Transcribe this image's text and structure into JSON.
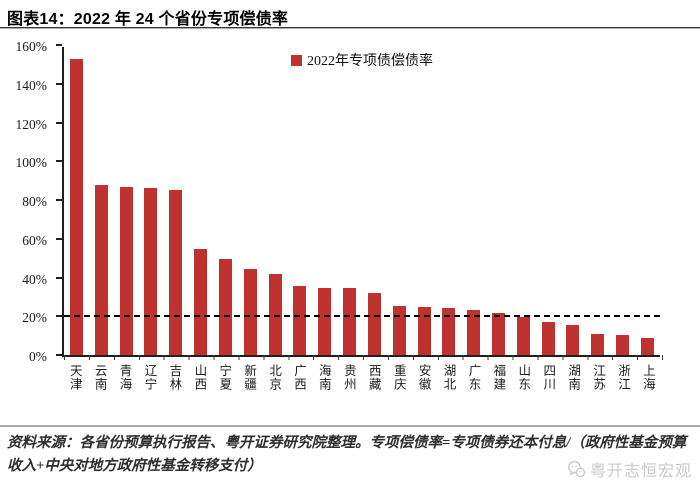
{
  "page": {
    "title": "图表14：2022 年 24 个省份专项偿债率"
  },
  "chart_data": {
    "type": "bar",
    "title": "2022 年 24 个省份专项偿债率",
    "legend": [
      "2022年专项债偿债率"
    ],
    "legend_position": "top-center",
    "categories": [
      "天津",
      "云南",
      "青海",
      "辽宁",
      "吉林",
      "山西",
      "宁夏",
      "新疆",
      "北京",
      "广西",
      "海南",
      "贵州",
      "西藏",
      "重庆",
      "安徽",
      "湖北",
      "广东",
      "福建",
      "山东",
      "四川",
      "湖南",
      "江苏",
      "浙江",
      "上海"
    ],
    "values": [
      153,
      88,
      86.5,
      86,
      85,
      54.5,
      49.5,
      44.5,
      42,
      35.5,
      34.5,
      34.5,
      32,
      25.5,
      25,
      24.5,
      23,
      21.5,
      19.5,
      17,
      15.5,
      11,
      10.5,
      9
    ],
    "unit": "%",
    "xlabel": "",
    "ylabel": "",
    "ylim": [
      0,
      160
    ],
    "yticks": [
      "0%",
      "20%",
      "40%",
      "60%",
      "80%",
      "100%",
      "120%",
      "140%",
      "160%"
    ],
    "grid": false,
    "reference_line": {
      "y": 20,
      "style": "dashed",
      "color": "#000000"
    },
    "bar_color": "#be3330",
    "legend_marker_color": "#c0302c"
  },
  "footer": {
    "source_text": "资料来源：各省份预算执行报告、粤开证券研究院整理。专项偿债率=专项债券还本付息/（政府性基金预算收入+中央对地方政府性基金转移支付）"
  },
  "watermark": {
    "icon": "wechat-icon",
    "label": "粤开志恒宏观"
  }
}
